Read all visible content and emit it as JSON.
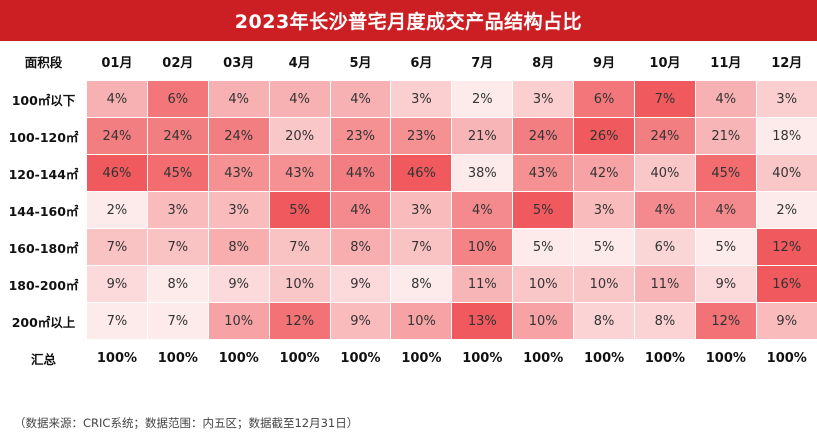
{
  "chart_data": {
    "type": "table",
    "title": "2023年长沙普宅月度成交产品结构占比",
    "row_header_label": "面积段",
    "months": [
      "01月",
      "02月",
      "03月",
      "4月",
      "5月",
      "6月",
      "7月",
      "8月",
      "9月",
      "10月",
      "11月",
      "12月"
    ],
    "rows": [
      {
        "label": "100㎡以下",
        "values": [
          4,
          6,
          4,
          4,
          4,
          3,
          2,
          3,
          6,
          7,
          4,
          3
        ]
      },
      {
        "label": "100-120㎡",
        "values": [
          24,
          24,
          24,
          20,
          23,
          23,
          21,
          24,
          26,
          24,
          21,
          18
        ]
      },
      {
        "label": "120-144㎡",
        "values": [
          46,
          45,
          43,
          43,
          44,
          46,
          38,
          43,
          42,
          40,
          45,
          40
        ]
      },
      {
        "label": "144-160㎡",
        "values": [
          2,
          3,
          3,
          5,
          4,
          3,
          4,
          5,
          3,
          4,
          4,
          2
        ]
      },
      {
        "label": "160-180㎡",
        "values": [
          7,
          7,
          8,
          7,
          8,
          7,
          10,
          5,
          5,
          6,
          5,
          12
        ]
      },
      {
        "label": "180-200㎡",
        "values": [
          9,
          8,
          9,
          10,
          9,
          8,
          11,
          10,
          10,
          11,
          9,
          16
        ]
      },
      {
        "label": "200㎡以上",
        "values": [
          7,
          7,
          10,
          12,
          9,
          10,
          13,
          10,
          8,
          8,
          12,
          9
        ]
      }
    ],
    "total_label": "汇总",
    "totals": [
      "100%",
      "100%",
      "100%",
      "100%",
      "100%",
      "100%",
      "100%",
      "100%",
      "100%",
      "100%",
      "100%",
      "100%"
    ],
    "value_suffix": "%",
    "color_scale": {
      "low": "#ffffff",
      "high": "#f05a5e"
    }
  },
  "footnote": "（数据来源：CRIC系统；数据范围：内五区；数据截至12月31日）",
  "colors": {
    "title_bg": "#cc1f24",
    "title_text": "#ffffff"
  }
}
